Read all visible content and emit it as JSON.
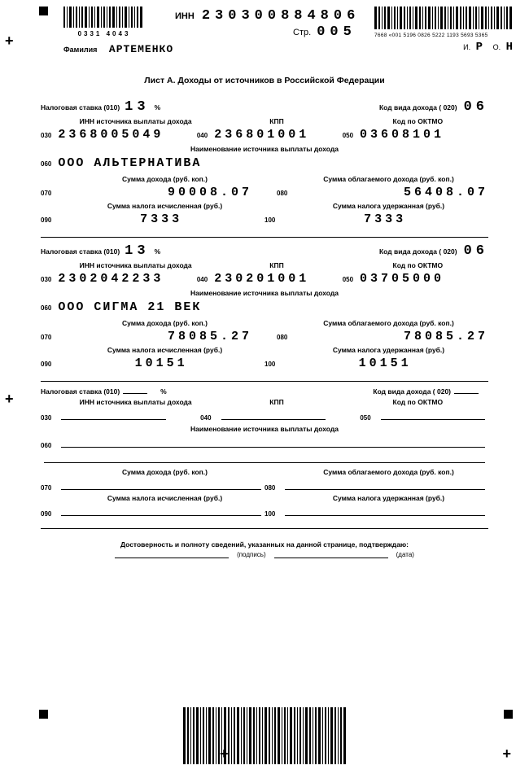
{
  "header": {
    "barcode_left_nums": "0331   4043",
    "inn_label": "ИНН",
    "inn_value": "230300884806",
    "page_label": "Стр.",
    "page_value": "005",
    "qr_text": "7668 «001 5196 0826 5222 1193 5693 5365",
    "surname_label": "Фамилия",
    "surname_value": "АРТЕМЕНКО",
    "initial_i_label": "И.",
    "initial_i": "Р",
    "initial_o_label": "О.",
    "initial_o": "Н"
  },
  "title": "Лист А. Доходы от источников в Российской Федерации",
  "labels": {
    "tax_rate": "Налоговая ставка (010)",
    "percent": "%",
    "income_code": "Код вида дохода ( 020)",
    "source_inn": "ИНН источника выплаты дохода",
    "kpp": "КПП",
    "oktmo": "Код по ОКТМО",
    "source_name": "Наименование источника выплаты дохода",
    "income_sum": "Сумма дохода (руб. коп.)",
    "tax_income_sum": "Сумма облагаемого дохода (руб. коп.)",
    "tax_calc": "Сумма налога исчисленная (руб.)",
    "tax_held": "Сумма налога удержанная (руб.)"
  },
  "codes": {
    "c030": "030",
    "c040": "040",
    "c050": "050",
    "c060": "060",
    "c070": "070",
    "c080": "080",
    "c090": "090",
    "c100": "100"
  },
  "sections": [
    {
      "tax_rate": "13",
      "income_code": "06",
      "source_inn": "2368005049",
      "kpp": "236801001",
      "oktmo": "03608101",
      "source_name": "ООО АЛЬТЕРНАТИВА",
      "income_sum": "90008.07",
      "tax_income_sum": "56408.07",
      "tax_calc": "7333",
      "tax_held": "7333"
    },
    {
      "tax_rate": "13",
      "income_code": "06",
      "source_inn": "2302042233",
      "kpp": "230201001",
      "oktmo": "03705000",
      "source_name": "ООО СИГМА 21 ВЕК",
      "income_sum": "78085.27",
      "tax_income_sum": "78085.27",
      "tax_calc": "10151",
      "tax_held": "10151"
    },
    {
      "tax_rate": "",
      "income_code": "",
      "source_inn": "",
      "kpp": "",
      "oktmo": "",
      "source_name": "",
      "income_sum": "",
      "tax_income_sum": "",
      "tax_calc": "",
      "tax_held": ""
    }
  ],
  "footer": {
    "confirm": "Достоверность и полноту сведений, указанных на данной странице, подтверждаю:",
    "sig": "(подпись)",
    "date": "(дата)"
  }
}
